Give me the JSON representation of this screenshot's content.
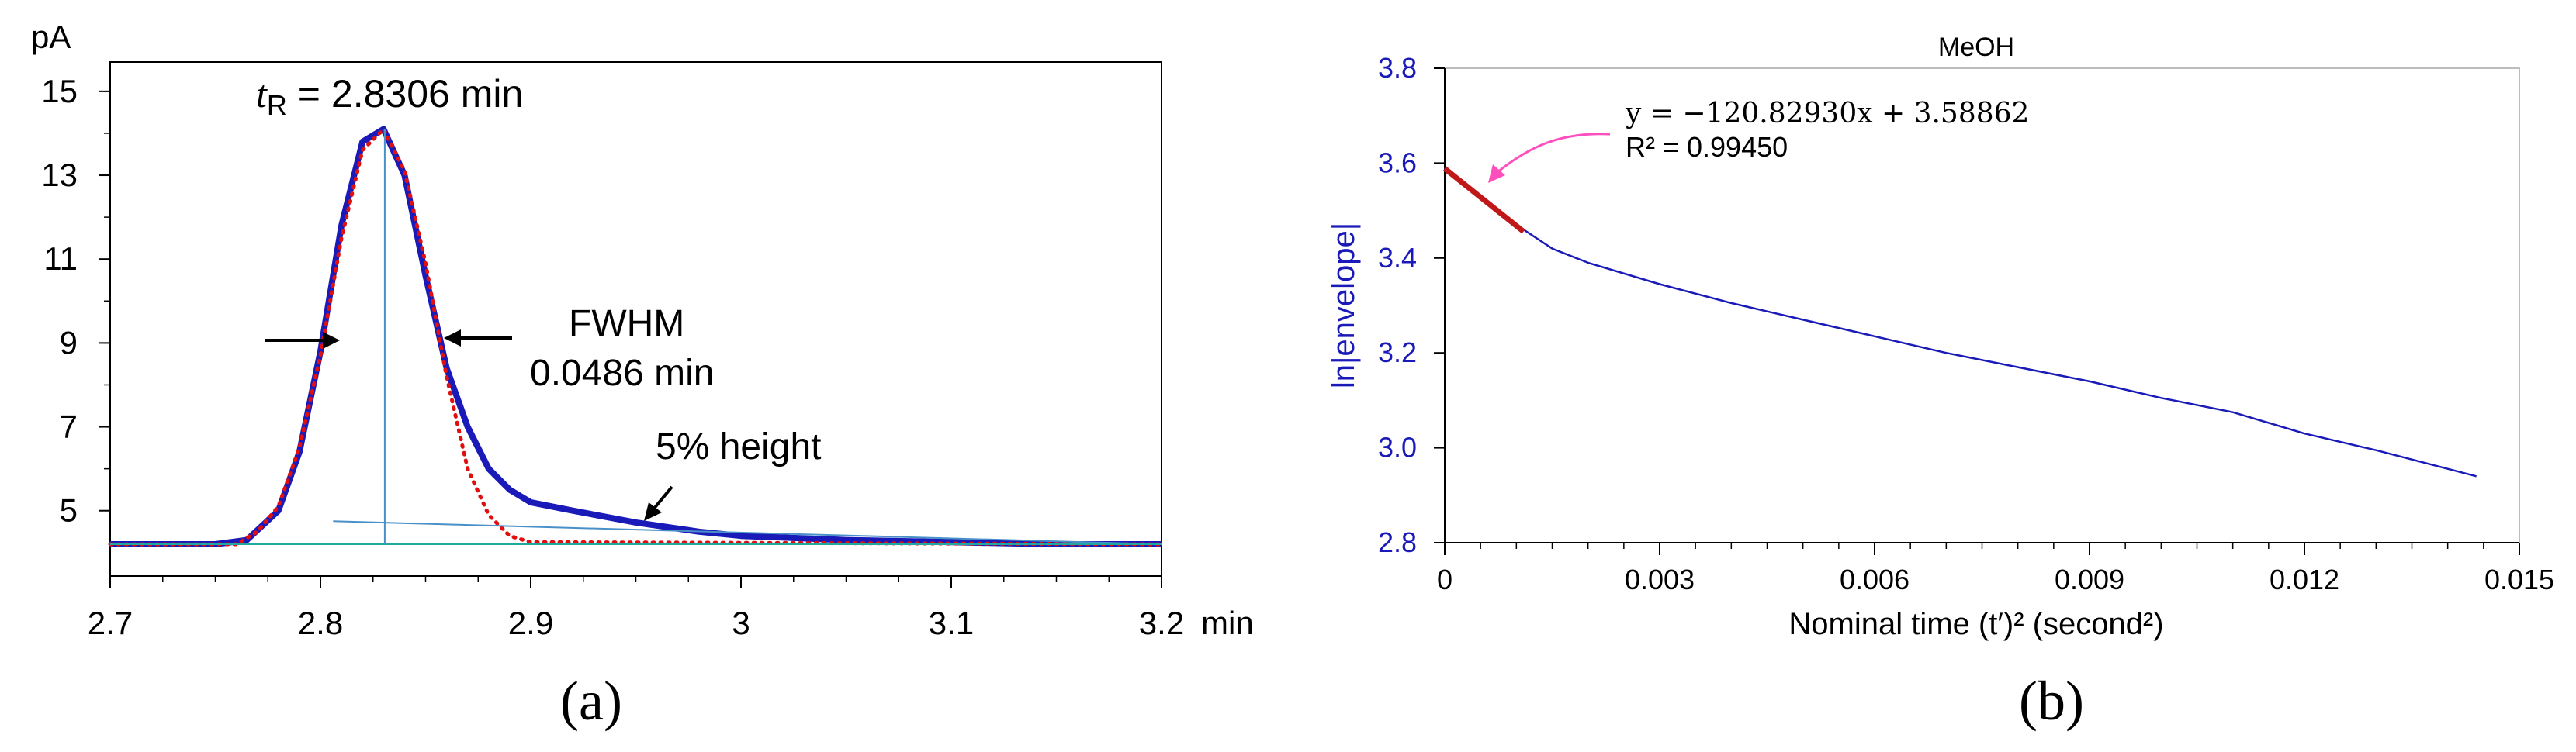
{
  "panel_labels": {
    "a": "(a)",
    "b": "(b)"
  },
  "chart_data": [
    {
      "id": "a",
      "type": "line",
      "title": "",
      "ylabel": "pA",
      "xunit": "min",
      "xlim": [
        2.7,
        3.2
      ],
      "ylim": [
        4.2,
        15.7
      ],
      "xticks": [
        2.7,
        2.8,
        2.9,
        3.0,
        3.1,
        3.2
      ],
      "xtick_labels": [
        "2.7",
        "2.8",
        "2.9",
        "3",
        "3.1",
        "3.2"
      ],
      "yticks": [
        5,
        7,
        9,
        11,
        13,
        15
      ],
      "ytick_labels": [
        "5",
        "7",
        "9",
        "11",
        "13",
        "15"
      ],
      "grid": false,
      "annotations": {
        "tr_symbol": "t",
        "tr_subscript": "R",
        "tr_value": " =  2.8306 min",
        "fwhm_label": "FWHM",
        "fwhm_value": "0.0486 min",
        "height_label": "5% height"
      },
      "baseline": 4.2,
      "peak": {
        "t_R": 2.8306,
        "apex": 14.1,
        "fwhm": 0.0486
      },
      "series": [
        {
          "style": "solid",
          "color": "#1a1ab8",
          "x": [
            2.7,
            2.75,
            2.765,
            2.78,
            2.79,
            2.8,
            2.81,
            2.82,
            2.83,
            2.84,
            2.85,
            2.86,
            2.87,
            2.88,
            2.89,
            2.9,
            2.92,
            2.95,
            2.98,
            3.0,
            3.05,
            3.1,
            3.15,
            3.2
          ],
          "y": [
            4.2,
            4.2,
            4.3,
            5.0,
            6.4,
            8.8,
            11.8,
            13.8,
            14.1,
            13.0,
            10.6,
            8.4,
            7.0,
            6.0,
            5.5,
            5.2,
            5.0,
            4.72,
            4.5,
            4.4,
            4.3,
            4.25,
            4.2,
            4.2
          ]
        },
        {
          "style": "dotted",
          "color": "#e01010",
          "x": [
            2.7,
            2.76,
            2.77,
            2.78,
            2.79,
            2.8,
            2.81,
            2.82,
            2.83,
            2.84,
            2.85,
            2.86,
            2.87,
            2.88,
            2.89,
            2.9,
            3.2
          ],
          "y": [
            4.2,
            4.2,
            4.5,
            5.1,
            6.5,
            8.7,
            11.5,
            13.6,
            14.1,
            13.1,
            10.9,
            8.2,
            6.0,
            4.9,
            4.4,
            4.25,
            4.2
          ]
        },
        {
          "style": "thin",
          "color": "#4a90c8",
          "x": [
            2.806,
            3.2
          ],
          "y": [
            4.75,
            4.2
          ]
        },
        {
          "style": "thin",
          "color": "#20a8a0",
          "x": [
            2.7,
            3.2
          ],
          "y": [
            4.2,
            4.2
          ]
        },
        {
          "style": "thin",
          "color": "#4a90c8",
          "x": [
            2.8306,
            2.8306
          ],
          "y": [
            14.1,
            4.2
          ]
        }
      ]
    },
    {
      "id": "b",
      "type": "line",
      "title": "MeOH",
      "xlabel": "Nominal time (t′)² (second²)",
      "ylabel": "ln|envelope|",
      "xlim": [
        0,
        0.015
      ],
      "ylim": [
        2.8,
        3.8
      ],
      "xticks": [
        0,
        0.003,
        0.006,
        0.009,
        0.012,
        0.015
      ],
      "xtick_labels": [
        "0",
        "0.003",
        "0.006",
        "0.009",
        "0.012",
        "0.015"
      ],
      "yticks": [
        2.8,
        3.0,
        3.2,
        3.4,
        3.6,
        3.8
      ],
      "ytick_labels": [
        "2.8",
        "3.0",
        "3.2",
        "3.4",
        "3.6",
        "3.8"
      ],
      "grid": false,
      "annotations": {
        "equation": "y = −120.82930x + 3.58862",
        "r2": "R² = 0.99450"
      },
      "series": [
        {
          "style": "thin",
          "color": "#1a1ab8",
          "x": [
            0,
            0.0005,
            0.001,
            0.0015,
            0.002,
            0.003,
            0.004,
            0.005,
            0.006,
            0.007,
            0.008,
            0.009,
            0.01,
            0.011,
            0.012,
            0.013,
            0.0144
          ],
          "y": [
            3.59,
            3.53,
            3.47,
            3.42,
            3.39,
            3.345,
            3.305,
            3.27,
            3.235,
            3.2,
            3.17,
            3.14,
            3.105,
            3.075,
            3.03,
            2.995,
            2.94
          ]
        },
        {
          "style": "fit",
          "color": "#c01818",
          "x": [
            0,
            0.0011
          ],
          "y": [
            3.5886,
            3.4557
          ]
        }
      ]
    }
  ]
}
